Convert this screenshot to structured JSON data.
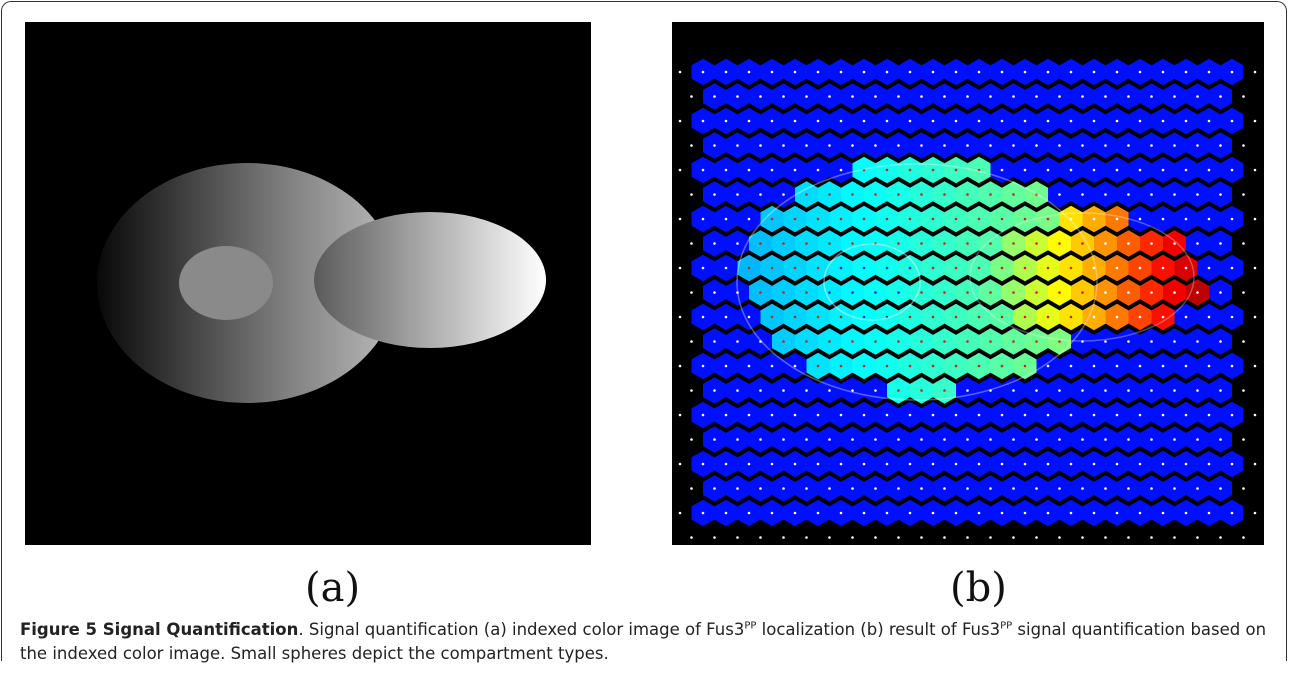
{
  "figure": {
    "panels": [
      {
        "label": "(a)"
      },
      {
        "label": "(b)"
      }
    ],
    "caption": {
      "title": "Figure 5 Signal Quantification",
      "segments": [
        {
          "text": ". Signal quantification (a) indexed color image of Fus3"
        },
        {
          "text": "PP",
          "sup": true
        },
        {
          "text": " localization (b) result of Fus3"
        },
        {
          "text": "PP",
          "sup": true
        },
        {
          "text": " signal quantification based on the indexed color image. Small spheres depict the compartment types."
        }
      ]
    }
  }
}
